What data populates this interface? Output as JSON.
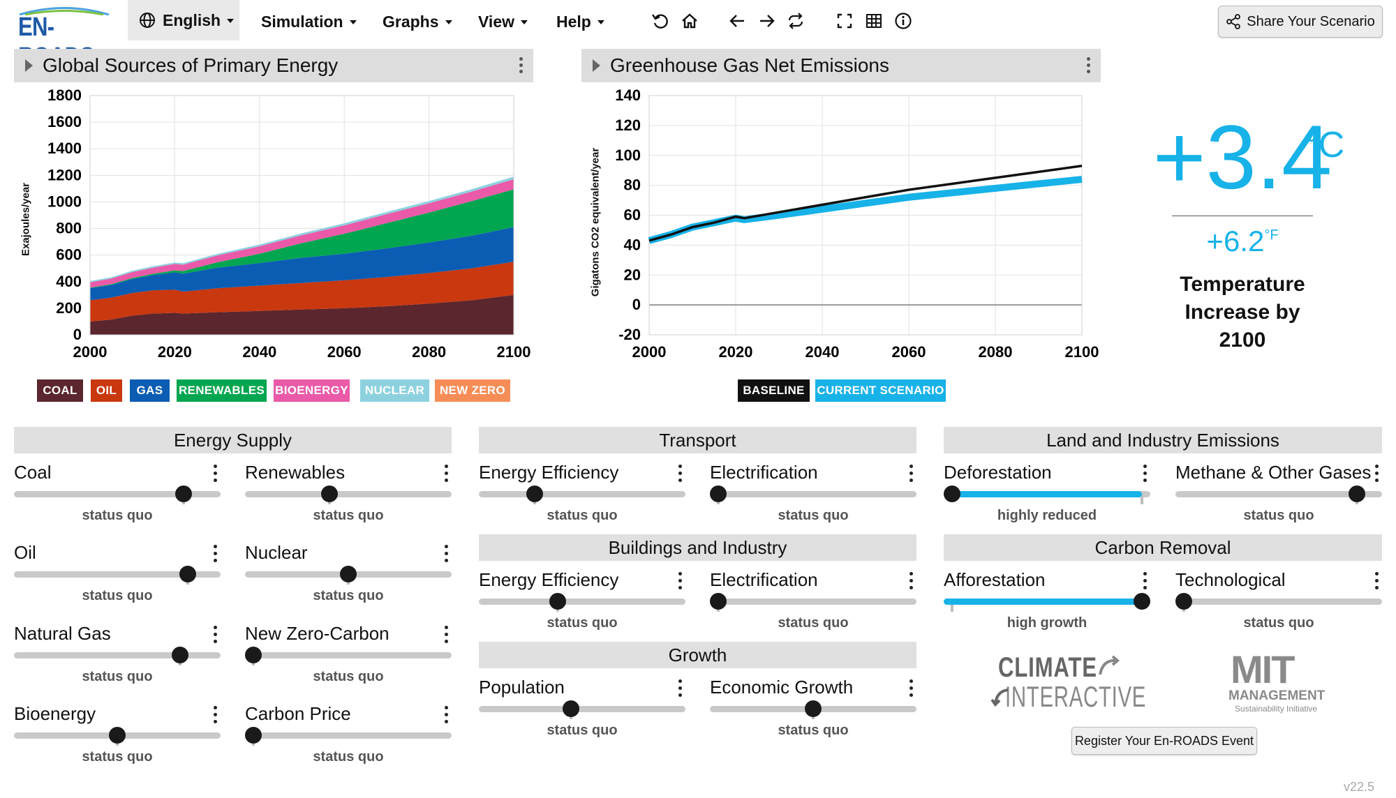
{
  "app": {
    "logo_text": "EN-ROADS",
    "version": "v22.5"
  },
  "menu": {
    "language": "English",
    "items": [
      "Simulation",
      "Graphs",
      "View",
      "Help"
    ]
  },
  "toolbar_icons": [
    "undo-icon",
    "home-icon",
    "back-icon",
    "forward-icon",
    "repeat-icon",
    "fullscreen-icon",
    "table-icon",
    "info-icon"
  ],
  "share_label": "Share Your Scenario",
  "graph1": {
    "title": "Global Sources of Primary Energy",
    "ylabel": "Exajoules/year",
    "legend": [
      {
        "label": "COAL",
        "color": "#5b262d"
      },
      {
        "label": "OIL",
        "color": "#c9380f"
      },
      {
        "label": "GAS",
        "color": "#0b5db3"
      },
      {
        "label": "RENEWABLES",
        "color": "#03a650"
      },
      {
        "label": "BIOENERGY",
        "color": "#ea5aa8"
      },
      {
        "label": "NUCLEAR",
        "color": "#8dd1df"
      },
      {
        "label": "NEW ZERO",
        "color": "#f68d57"
      }
    ]
  },
  "graph2": {
    "title": "Greenhouse Gas Net Emissions",
    "ylabel": "Gigatons CO2 equivalent/year",
    "legend": [
      {
        "label": "BASELINE",
        "color": "#111111"
      },
      {
        "label": "CURRENT SCENARIO",
        "color": "#17b2e8"
      }
    ]
  },
  "chart_data": [
    {
      "type": "area",
      "stacked": true,
      "title": "Global Sources of Primary Energy",
      "ylabel": "Exajoules/year",
      "x": [
        2000,
        2005,
        2010,
        2015,
        2020,
        2022,
        2030,
        2040,
        2050,
        2060,
        2070,
        2080,
        2090,
        2100
      ],
      "ylim": [
        0,
        1800
      ],
      "yticks": [
        0,
        200,
        400,
        600,
        800,
        1000,
        1200,
        1400,
        1600,
        1800
      ],
      "xticks": [
        2000,
        2020,
        2040,
        2060,
        2080,
        2100
      ],
      "series": [
        {
          "name": "COAL",
          "color": "#5b262d",
          "values": [
            100,
            115,
            145,
            160,
            165,
            160,
            170,
            180,
            190,
            200,
            215,
            235,
            260,
            300
          ]
        },
        {
          "name": "OIL",
          "color": "#c9380f",
          "values": [
            160,
            165,
            170,
            175,
            175,
            165,
            180,
            190,
            200,
            210,
            220,
            230,
            240,
            250
          ]
        },
        {
          "name": "GAS",
          "color": "#0b5db3",
          "values": [
            90,
            95,
            105,
            115,
            130,
            135,
            155,
            170,
            190,
            200,
            215,
            230,
            245,
            260
          ]
        },
        {
          "name": "RENEWABLES",
          "color": "#03a650",
          "values": [
            5,
            6,
            8,
            10,
            15,
            20,
            40,
            70,
            110,
            150,
            190,
            225,
            260,
            285
          ]
        },
        {
          "name": "BIOENERGY",
          "color": "#ea5aa8",
          "values": [
            40,
            42,
            44,
            46,
            48,
            48,
            52,
            56,
            60,
            64,
            68,
            70,
            72,
            75
          ]
        },
        {
          "name": "NUCLEAR",
          "color": "#8dd1df",
          "values": [
            10,
            10,
            11,
            11,
            11,
            11,
            12,
            13,
            14,
            15,
            16,
            17,
            18,
            20
          ]
        },
        {
          "name": "NEW ZERO",
          "color": "#f68d57",
          "values": [
            0,
            0,
            0,
            0,
            0,
            0,
            0,
            0,
            0,
            0,
            0,
            0,
            0,
            0
          ]
        }
      ]
    },
    {
      "type": "line",
      "title": "Greenhouse Gas Net Emissions",
      "ylabel": "Gigatons CO2 equivalent/year",
      "ylim": [
        -20,
        140
      ],
      "yticks": [
        -20,
        0,
        20,
        40,
        60,
        80,
        100,
        120,
        140
      ],
      "xticks": [
        2000,
        2020,
        2040,
        2060,
        2080,
        2100
      ],
      "x": [
        2000,
        2005,
        2010,
        2015,
        2020,
        2022,
        2030,
        2040,
        2050,
        2060,
        2070,
        2080,
        2090,
        2100
      ],
      "series": [
        {
          "name": "BASELINE",
          "color": "#111111",
          "values": [
            43,
            47,
            52,
            55,
            59,
            58,
            62,
            67,
            72,
            77,
            81,
            85,
            89,
            93
          ]
        },
        {
          "name": "CURRENT SCENARIO",
          "color": "#17b2e8",
          "values": [
            43,
            47,
            52,
            55,
            58,
            57,
            60,
            64,
            68,
            72,
            75,
            78,
            81,
            84
          ]
        }
      ]
    }
  ],
  "temperature": {
    "celsius": "+3.4",
    "celsius_unit": "°C",
    "fahrenheit": "+6.2",
    "fahrenheit_unit": "°F",
    "label_line1": "Temperature",
    "label_line2": "Increase by",
    "label_line3": "2100"
  },
  "sections": {
    "energy_supply": "Energy Supply",
    "transport": "Transport",
    "land_industry": "Land and Industry Emissions",
    "buildings": "Buildings and Industry",
    "growth": "Growth",
    "carbon_removal": "Carbon Removal"
  },
  "sliders": {
    "coal": {
      "label": "Coal",
      "status": "status quo",
      "level": 0.85
    },
    "renewables": {
      "label": "Renewables",
      "status": "status quo",
      "level": 0.4
    },
    "oil": {
      "label": "Oil",
      "status": "status quo",
      "level": 0.87
    },
    "nuclear": {
      "label": "Nuclear",
      "status": "status quo",
      "level": 0.5
    },
    "natural_gas": {
      "label": "Natural Gas",
      "status": "status quo",
      "level": 0.83
    },
    "new_zero_carbon": {
      "label": "New Zero-Carbon",
      "status": "status quo",
      "level": 0.0
    },
    "bioenergy": {
      "label": "Bioenergy",
      "status": "status quo",
      "level": 0.5
    },
    "carbon_price": {
      "label": "Carbon Price",
      "status": "status quo",
      "level": 0.0
    },
    "transport_efficiency": {
      "label": "Energy Efficiency",
      "status": "status quo",
      "level": 0.25
    },
    "transport_electrification": {
      "label": "Electrification",
      "status": "status quo",
      "level": 0.0
    },
    "buildings_efficiency": {
      "label": "Energy Efficiency",
      "status": "status quo",
      "level": 0.37
    },
    "buildings_electrification": {
      "label": "Electrification",
      "status": "status quo",
      "level": 0.0
    },
    "population": {
      "label": "Population",
      "status": "status quo",
      "level": 0.44
    },
    "economic_growth": {
      "label": "Economic Growth",
      "status": "status quo",
      "level": 0.5
    },
    "deforestation": {
      "label": "Deforestation",
      "status": "highly reduced",
      "level": 0.0
    },
    "methane": {
      "label": "Methane & Other Gases",
      "status": "status quo",
      "level": 0.91
    },
    "afforestation": {
      "label": "Afforestation",
      "status": "high growth",
      "level": 1.0
    },
    "technological": {
      "label": "Technological",
      "status": "status quo",
      "level": 0.0
    }
  },
  "partners": {
    "climate_interactive_1": "CLIMATE",
    "climate_interactive_2": "INTERACTIVE",
    "mit_1": "MIT",
    "mit_2": "MANAGEMENT",
    "mit_3": "Sustainability Initiative"
  },
  "register_label": "Register Your En-ROADS Event"
}
